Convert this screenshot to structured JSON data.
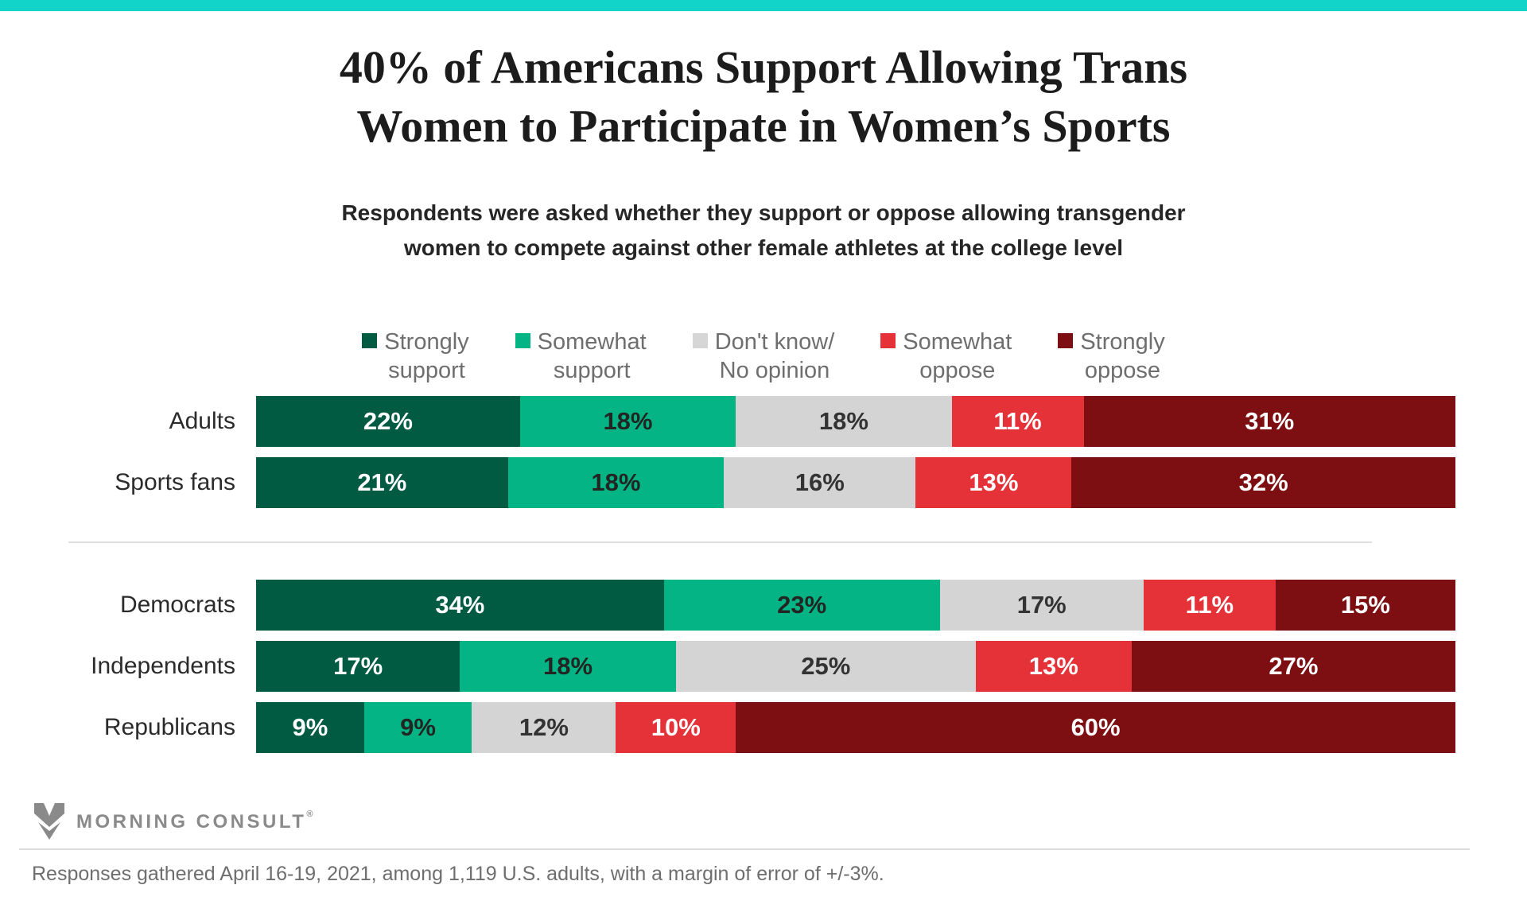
{
  "page": {
    "topbar_color": "#12d4c9",
    "background_color": "#ffffff"
  },
  "title": {
    "line1": "40% of Americans Support Allowing Trans",
    "line2": "Women to Participate in Women’s Sports"
  },
  "subtitle": {
    "line1": "Respondents were asked whether they support or oppose allowing transgender",
    "line2": "women to compete against other female athletes at the college level"
  },
  "legend": {
    "items": [
      {
        "label": "Strongly\nsupport",
        "color": "#015b43"
      },
      {
        "label": "Somewhat\nsupport",
        "color": "#04b485"
      },
      {
        "label": "Don't know/\nNo opinion",
        "color": "#d6d6d6"
      },
      {
        "label": "Somewhat\noppose",
        "color": "#e53239"
      },
      {
        "label": "Strongly\noppose",
        "color": "#7d0f12"
      }
    ]
  },
  "chart_data": {
    "type": "bar",
    "variant": "horizontal-stacked-100pct",
    "unit": "%",
    "xlim": [
      0,
      100
    ],
    "series": [
      {
        "name": "Strongly support",
        "color": "#015b43",
        "text_color": "#ffffff"
      },
      {
        "name": "Somewhat support",
        "color": "#04b485",
        "text_color": "#222522"
      },
      {
        "name": "Don't know/ No opinion",
        "color": "#d4d4d4",
        "text_color": "#333333"
      },
      {
        "name": "Somewhat oppose",
        "color": "#e53239",
        "text_color": "#ffffff"
      },
      {
        "name": "Strongly oppose",
        "color": "#7d0f12",
        "text_color": "#ffffff"
      }
    ],
    "groups": [
      {
        "name": "overall",
        "rows": [
          {
            "category": "Adults",
            "values": [
              22,
              18,
              18,
              11,
              31
            ]
          },
          {
            "category": "Sports fans",
            "values": [
              21,
              18,
              16,
              13,
              32
            ]
          }
        ]
      },
      {
        "name": "by-party",
        "rows": [
          {
            "category": "Democrats",
            "values": [
              34,
              23,
              17,
              11,
              15
            ]
          },
          {
            "category": "Independents",
            "values": [
              17,
              18,
              25,
              13,
              27
            ]
          },
          {
            "category": "Republicans",
            "values": [
              9,
              9,
              12,
              10,
              60
            ]
          }
        ]
      }
    ]
  },
  "footer": {
    "logo_text": "MORNING CONSULT",
    "registered_mark": "®",
    "source_note": "Responses gathered April 16-19, 2021, among 1,119 U.S. adults, with a margin of error of +/-3%."
  }
}
